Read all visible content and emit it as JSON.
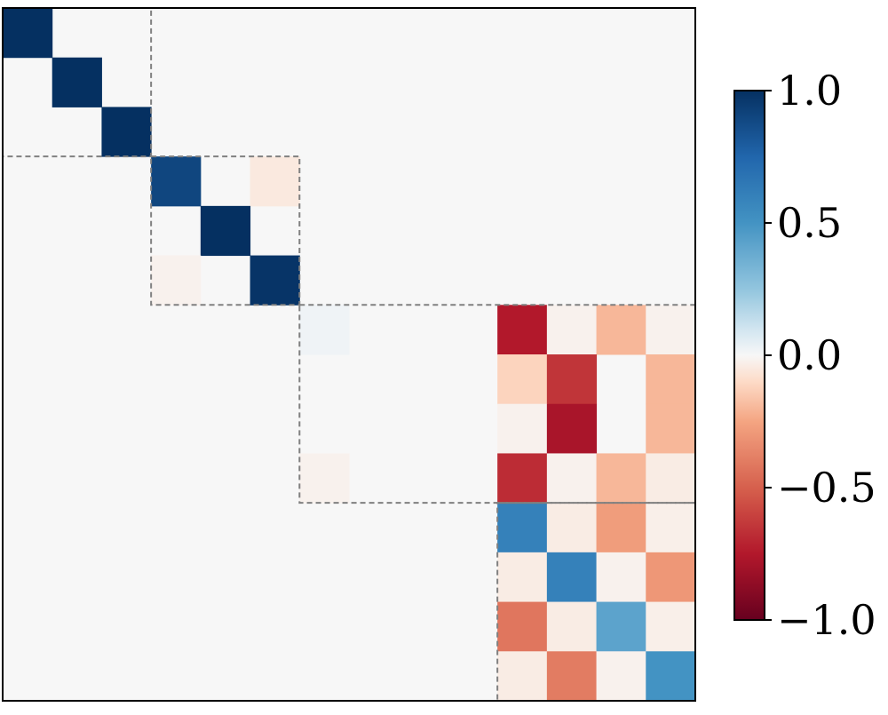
{
  "chart_data": {
    "type": "heatmap",
    "rows": 14,
    "cols": 14,
    "cells": [
      {
        "r": 0,
        "c": 0,
        "v": 1.0
      },
      {
        "r": 1,
        "c": 1,
        "v": 1.0
      },
      {
        "r": 2,
        "c": 2,
        "v": 1.0
      },
      {
        "r": 3,
        "c": 3,
        "v": 0.9
      },
      {
        "r": 3,
        "c": 5,
        "v": -0.05
      },
      {
        "r": 4,
        "c": 4,
        "v": 1.0
      },
      {
        "r": 5,
        "c": 3,
        "v": -0.02
      },
      {
        "r": 5,
        "c": 5,
        "v": 0.98
      },
      {
        "r": 6,
        "c": 6,
        "v": 0.02
      },
      {
        "r": 6,
        "c": 10,
        "v": -0.75
      },
      {
        "r": 6,
        "c": 11,
        "v": -0.02
      },
      {
        "r": 6,
        "c": 12,
        "v": -0.2
      },
      {
        "r": 6,
        "c": 13,
        "v": -0.02
      },
      {
        "r": 7,
        "c": 10,
        "v": -0.12
      },
      {
        "r": 7,
        "c": 11,
        "v": -0.65
      },
      {
        "r": 7,
        "c": 13,
        "v": -0.2
      },
      {
        "r": 8,
        "c": 10,
        "v": -0.02
      },
      {
        "r": 8,
        "c": 11,
        "v": -0.78
      },
      {
        "r": 8,
        "c": 13,
        "v": -0.2
      },
      {
        "r": 9,
        "c": 6,
        "v": -0.02
      },
      {
        "r": 9,
        "c": 10,
        "v": -0.68
      },
      {
        "r": 9,
        "c": 11,
        "v": -0.02
      },
      {
        "r": 9,
        "c": 12,
        "v": -0.2
      },
      {
        "r": 9,
        "c": 13,
        "v": -0.04
      },
      {
        "r": 10,
        "c": 10,
        "v": 0.6
      },
      {
        "r": 10,
        "c": 11,
        "v": -0.04
      },
      {
        "r": 10,
        "c": 12,
        "v": -0.28
      },
      {
        "r": 10,
        "c": 13,
        "v": -0.03
      },
      {
        "r": 11,
        "c": 10,
        "v": -0.04
      },
      {
        "r": 11,
        "c": 11,
        "v": 0.6
      },
      {
        "r": 11,
        "c": 12,
        "v": -0.02
      },
      {
        "r": 11,
        "c": 13,
        "v": -0.3
      },
      {
        "r": 12,
        "c": 10,
        "v": -0.42
      },
      {
        "r": 12,
        "c": 11,
        "v": -0.04
      },
      {
        "r": 12,
        "c": 12,
        "v": 0.42
      },
      {
        "r": 12,
        "c": 13,
        "v": -0.03
      },
      {
        "r": 13,
        "c": 10,
        "v": -0.04
      },
      {
        "r": 13,
        "c": 11,
        "v": -0.4
      },
      {
        "r": 13,
        "c": 12,
        "v": -0.02
      },
      {
        "r": 13,
        "c": 13,
        "v": 0.5
      }
    ],
    "blocks": [
      {
        "r0": 0,
        "c0": 0,
        "r1": 3,
        "c1": 3
      },
      {
        "r0": 3,
        "c0": 3,
        "r1": 6,
        "c1": 6
      },
      {
        "r0": 6,
        "c0": 6,
        "r1": 10,
        "c1": 14
      },
      {
        "r0": 10,
        "c0": 10,
        "r1": 14,
        "c1": 14
      }
    ],
    "colorbar": {
      "min": -1.0,
      "max": 1.0,
      "colormap": "RdBu",
      "ticks": [
        1.0,
        0.5,
        0.0,
        -0.5,
        -1.0
      ],
      "tick_labels": [
        "1.0",
        "0.5",
        "0.0",
        "−0.5",
        "−1.0"
      ]
    },
    "grid": false,
    "title": "",
    "xlabel": "",
    "ylabel": ""
  }
}
